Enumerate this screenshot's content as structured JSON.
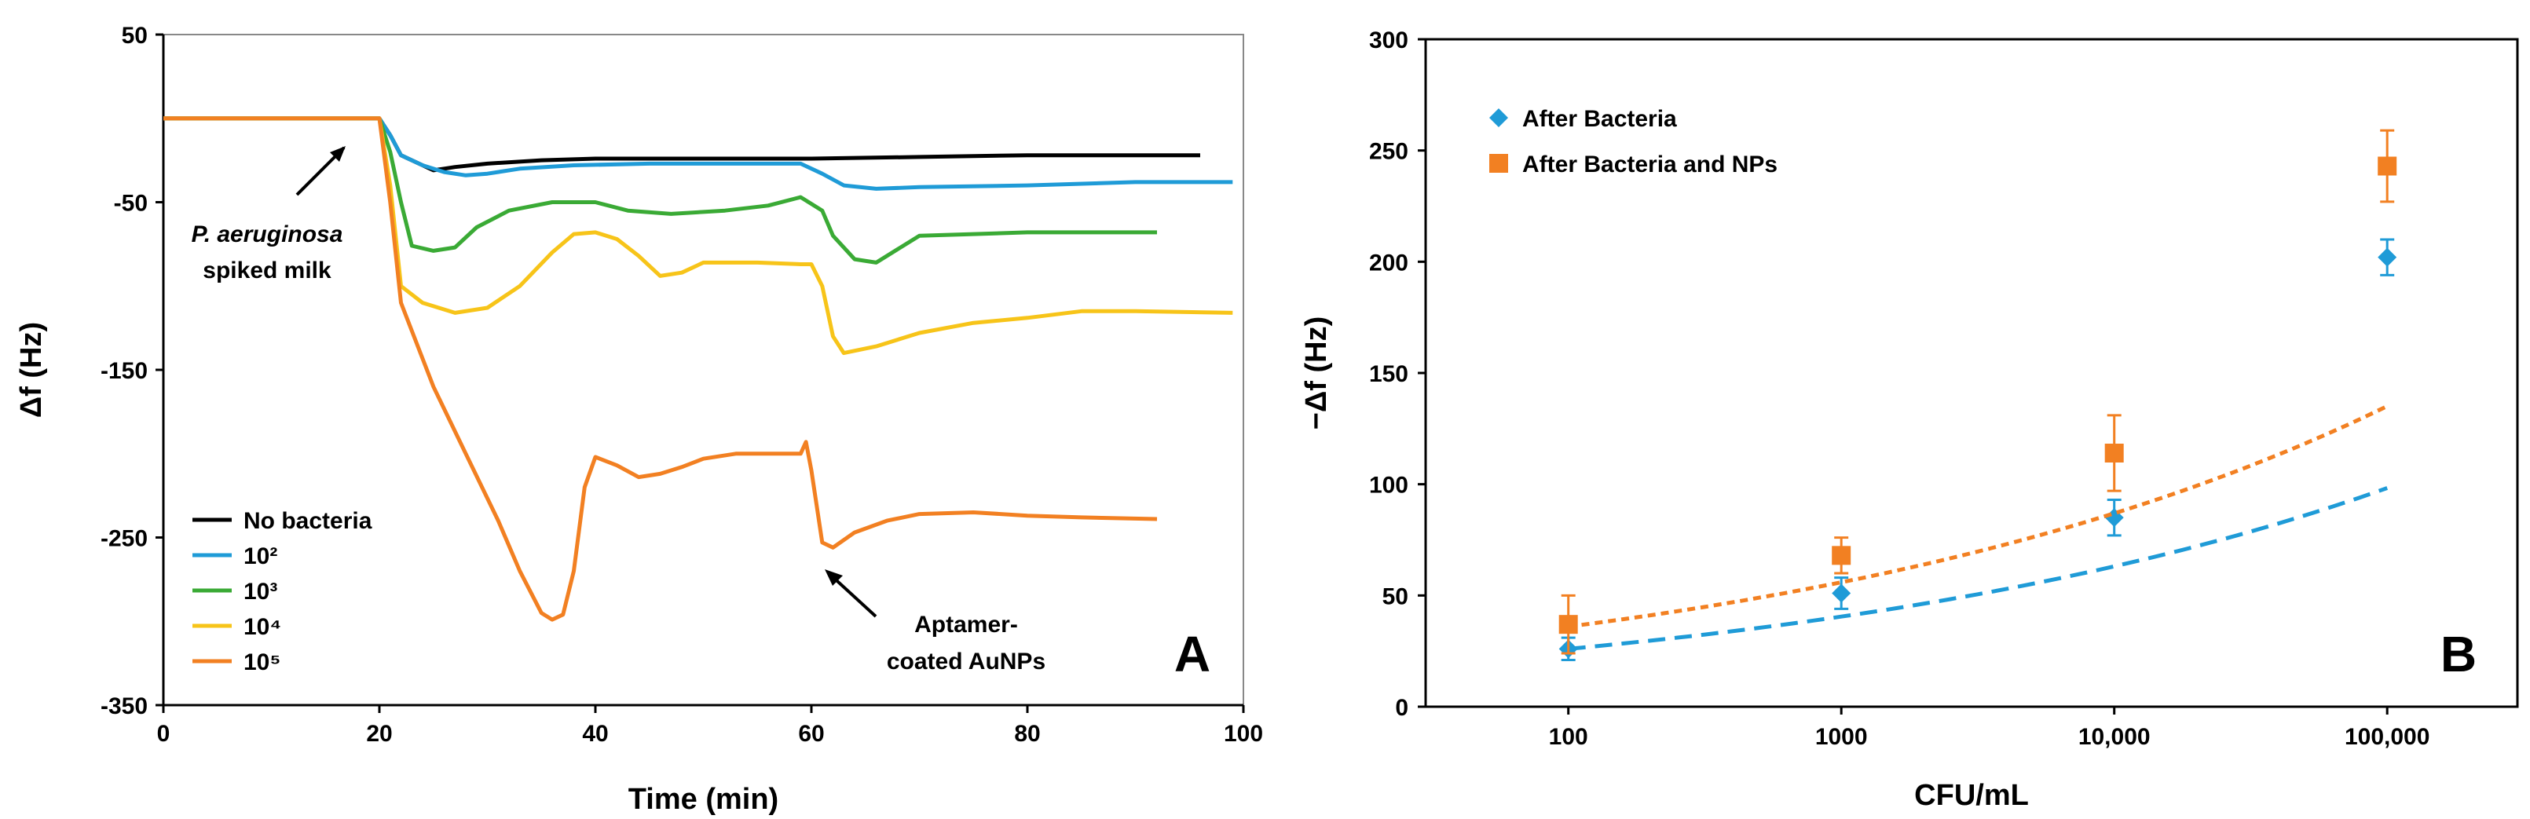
{
  "chart_data": [
    {
      "panel": "A",
      "type": "line",
      "xlabel": "Time (min)",
      "ylabel": "Δf (Hz)",
      "xlim": [
        0,
        100
      ],
      "ylim": [
        -350,
        50
      ],
      "xticks": [
        "0",
        "20",
        "40",
        "60",
        "80",
        "100"
      ],
      "yticks": [
        "50",
        "-50",
        "-150",
        "-250",
        "-350"
      ],
      "grid": false,
      "legend_position": "bottom-left",
      "series": [
        {
          "name": "No bacteria",
          "color": "#000000",
          "points": [
            [
              0,
              0
            ],
            [
              20,
              0
            ],
            [
              21,
              -10
            ],
            [
              22,
              -22
            ],
            [
              24,
              -28
            ],
            [
              25,
              -31
            ],
            [
              26,
              -30
            ],
            [
              27,
              -29
            ],
            [
              30,
              -27
            ],
            [
              35,
              -25
            ],
            [
              40,
              -24
            ],
            [
              50,
              -24
            ],
            [
              60,
              -24
            ],
            [
              70,
              -23
            ],
            [
              80,
              -22
            ],
            [
              90,
              -22
            ],
            [
              96,
              -22
            ]
          ]
        },
        {
          "name": "10²",
          "color": "#1f9bd7",
          "points": [
            [
              0,
              0
            ],
            [
              20,
              0
            ],
            [
              21,
              -10
            ],
            [
              22,
              -22
            ],
            [
              24,
              -28
            ],
            [
              26,
              -32
            ],
            [
              28,
              -34
            ],
            [
              30,
              -33
            ],
            [
              33,
              -30
            ],
            [
              38,
              -28
            ],
            [
              45,
              -27
            ],
            [
              50,
              -27
            ],
            [
              55,
              -27
            ],
            [
              59,
              -27
            ],
            [
              61,
              -33
            ],
            [
              63,
              -40
            ],
            [
              66,
              -42
            ],
            [
              70,
              -41
            ],
            [
              80,
              -40
            ],
            [
              90,
              -38
            ],
            [
              99,
              -38
            ]
          ]
        },
        {
          "name": "10³",
          "color": "#3aaa35",
          "points": [
            [
              0,
              0
            ],
            [
              20,
              0
            ],
            [
              21,
              -20
            ],
            [
              22,
              -50
            ],
            [
              23,
              -76
            ],
            [
              25,
              -79
            ],
            [
              27,
              -77
            ],
            [
              29,
              -65
            ],
            [
              32,
              -55
            ],
            [
              36,
              -50
            ],
            [
              40,
              -50
            ],
            [
              43,
              -55
            ],
            [
              47,
              -57
            ],
            [
              52,
              -55
            ],
            [
              56,
              -52
            ],
            [
              59,
              -47
            ],
            [
              61,
              -55
            ],
            [
              62,
              -70
            ],
            [
              64,
              -84
            ],
            [
              66,
              -86
            ],
            [
              68,
              -78
            ],
            [
              70,
              -70
            ],
            [
              75,
              -69
            ],
            [
              80,
              -68
            ],
            [
              92,
              -68
            ]
          ]
        },
        {
          "name": "10⁴",
          "color": "#f7c419",
          "points": [
            [
              0,
              0
            ],
            [
              20,
              0
            ],
            [
              21,
              -40
            ],
            [
              22,
              -100
            ],
            [
              24,
              -110
            ],
            [
              27,
              -116
            ],
            [
              30,
              -113
            ],
            [
              33,
              -100
            ],
            [
              36,
              -80
            ],
            [
              38,
              -69
            ],
            [
              40,
              -68
            ],
            [
              42,
              -72
            ],
            [
              44,
              -82
            ],
            [
              46,
              -94
            ],
            [
              48,
              -92
            ],
            [
              50,
              -86
            ],
            [
              55,
              -86
            ],
            [
              59,
              -87
            ],
            [
              60,
              -87
            ],
            [
              61,
              -100
            ],
            [
              62,
              -130
            ],
            [
              63,
              -140
            ],
            [
              66,
              -136
            ],
            [
              70,
              -128
            ],
            [
              75,
              -122
            ],
            [
              80,
              -119
            ],
            [
              85,
              -115
            ],
            [
              90,
              -115
            ],
            [
              99,
              -116
            ]
          ]
        },
        {
          "name": "10⁵",
          "color": "#f28022",
          "points": [
            [
              0,
              0
            ],
            [
              20,
              0
            ],
            [
              21,
              -50
            ],
            [
              22,
              -110
            ],
            [
              25,
              -160
            ],
            [
              28,
              -200
            ],
            [
              31,
              -240
            ],
            [
              33,
              -270
            ],
            [
              35,
              -295
            ],
            [
              36,
              -299
            ],
            [
              37,
              -296
            ],
            [
              38,
              -270
            ],
            [
              39,
              -220
            ],
            [
              40,
              -202
            ],
            [
              42,
              -207
            ],
            [
              44,
              -214
            ],
            [
              46,
              -212
            ],
            [
              48,
              -208
            ],
            [
              50,
              -203
            ],
            [
              53,
              -200
            ],
            [
              59,
              -200
            ],
            [
              59.5,
              -193
            ],
            [
              60,
              -210
            ],
            [
              61,
              -253
            ],
            [
              62,
              -256
            ],
            [
              64,
              -247
            ],
            [
              67,
              -240
            ],
            [
              70,
              -236
            ],
            [
              75,
              -235
            ],
            [
              80,
              -237
            ],
            [
              85,
              -238
            ],
            [
              92,
              -239
            ]
          ]
        }
      ],
      "annotations": [
        {
          "text_italic": "P. aeruginosa",
          "text": "spiked milk",
          "arrow_from": [
            16.5,
            -10
          ],
          "arrow_to": [
            20,
            -15
          ]
        },
        {
          "text": "Aptamer-",
          "text2": "coated AuNPs",
          "arrow_from": [
            66,
            -295
          ],
          "arrow_to": [
            61.5,
            -260
          ]
        }
      ]
    },
    {
      "panel": "B",
      "type": "scatter",
      "xlabel": "CFU/mL",
      "ylabel": "−Δf (Hz)",
      "xscale": "log",
      "xticks": [
        "100",
        "1000",
        "10,000",
        "100,000"
      ],
      "xtick_values": [
        100,
        1000,
        10000,
        100000
      ],
      "xlim": [
        30,
        300000
      ],
      "ylim": [
        0,
        300
      ],
      "yticks": [
        "0",
        "50",
        "100",
        "150",
        "200",
        "250",
        "300"
      ],
      "grid": false,
      "legend_position": "top-left",
      "series": [
        {
          "name": "After Bacteria",
          "color": "#1f9bd7",
          "marker": "diamond",
          "x": [
            100,
            1000,
            10000,
            100000
          ],
          "y": [
            26,
            51,
            85,
            202
          ],
          "err": [
            5,
            7,
            8,
            8
          ],
          "fit": {
            "style": "dashed",
            "a": 26,
            "b": 0.2139
          }
        },
        {
          "name": "After Bacteria and NPs",
          "color": "#f28022",
          "marker": "square",
          "x": [
            100,
            1000,
            10000,
            100000
          ],
          "y": [
            37,
            68,
            114,
            243
          ],
          "err": [
            13,
            8,
            17,
            16
          ],
          "fit": {
            "style": "dotted",
            "a": 36,
            "b": 0.2127
          }
        }
      ]
    }
  ]
}
